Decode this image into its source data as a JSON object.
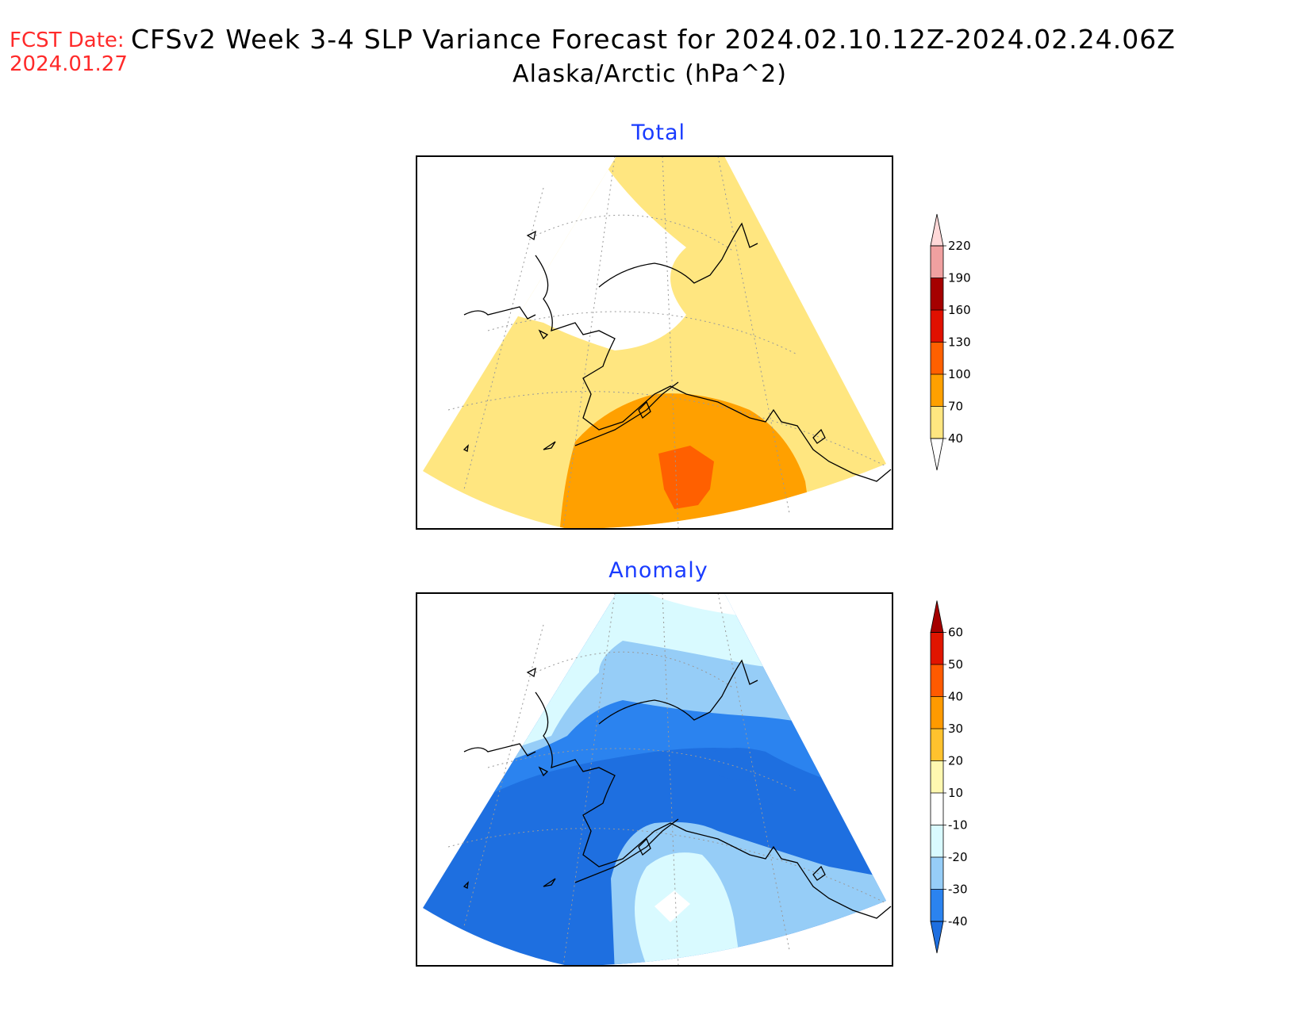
{
  "header": {
    "fcst_label": "FCST Date:",
    "fcst_date": "2024.01.27",
    "title": "CFSv2 Week 3-4 SLP Variance Forecast for 2024.02.10.12Z-2024.02.24.06Z",
    "subtitle": "Alaska/Arctic (hPa^2)"
  },
  "panels": {
    "total": {
      "title": "Total",
      "colorbar": {
        "labels": [
          "40",
          "70",
          "100",
          "130",
          "160",
          "190",
          "220"
        ],
        "colors": [
          "#ffe680",
          "#ffa000",
          "#ff6000",
          "#e01000",
          "#a50000",
          "#f0a0a0",
          "#ffd8d8"
        ]
      }
    },
    "anomaly": {
      "title": "Anomaly",
      "colorbar": {
        "labels": [
          "-40",
          "-30",
          "-20",
          "-10",
          "10",
          "20",
          "30",
          "40",
          "50",
          "60"
        ],
        "colors": [
          "#1e6fe0",
          "#2b83ef",
          "#96cdf7",
          "#d9faff",
          "#ffffff",
          "#fff8b0",
          "#ffc22e",
          "#ff9a00",
          "#ff5a00",
          "#e01500",
          "#a50000"
        ]
      }
    }
  },
  "map": {
    "region": "Alaska/Arctic"
  }
}
